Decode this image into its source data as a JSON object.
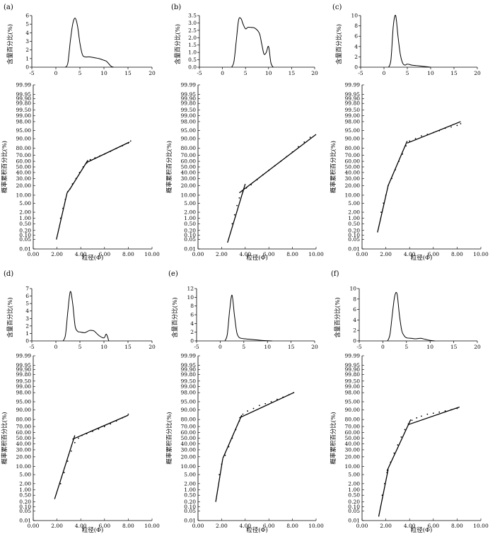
{
  "figure": {
    "cumulative_tick_labels": [
      "99.99",
      "99.95",
      "99.90",
      "99.80",
      "99.50",
      "99.00",
      "98.00",
      "95.00",
      "90.00",
      "80.00",
      "70.00",
      "60.00",
      "50.00",
      "40.00",
      "30.00",
      "20.00",
      "10.00",
      "5.00",
      "2.00",
      "1.00",
      "0.50",
      "0.20",
      "0.10",
      "0.05",
      "0.01"
    ],
    "cumulative_tick_values": [
      99.99,
      99.95,
      99.9,
      99.8,
      99.5,
      99.0,
      98.0,
      95.0,
      90.0,
      80.0,
      70.0,
      60.0,
      50.0,
      40.0,
      30.0,
      20.0,
      10.0,
      5.0,
      2.0,
      1.0,
      0.5,
      0.2,
      0.1,
      0.05,
      0.01
    ]
  },
  "chart_data": [
    {
      "panel": "(a)",
      "frequency": {
        "type": "line",
        "ylabel": "含量百分比(%)",
        "xlim": [
          -5,
          20
        ],
        "xticks": [
          -5,
          0,
          5,
          10,
          15,
          20
        ],
        "ylim": [
          0,
          6
        ],
        "yticks": [
          0,
          1,
          2,
          3,
          4,
          5,
          6
        ],
        "x": [
          2.0,
          2.5,
          3.0,
          3.5,
          4.0,
          4.5,
          5.0,
          5.5,
          6.0,
          7.0,
          8.0,
          9.0,
          10.0,
          10.5,
          11.0,
          11.5,
          12.0
        ],
        "y": [
          0,
          0.5,
          3.0,
          5.0,
          5.7,
          4.8,
          2.8,
          1.5,
          1.2,
          1.2,
          1.1,
          1.0,
          0.8,
          0.7,
          0.4,
          0.1,
          0
        ]
      },
      "cumulative": {
        "type": "line",
        "xlabel": "粒径(Φ)",
        "ylabel": "概率累积百分比(%)",
        "xlim": [
          0,
          10
        ],
        "xticks": [
          "0.00",
          "2.00",
          "4.00",
          "6.00",
          "8.00",
          "10.00"
        ],
        "fit_lines": [
          {
            "x": [
              1.95,
              2.85
            ],
            "y": [
              0.05,
              12
            ]
          },
          {
            "x": [
              2.85,
              3.1
            ],
            "y": [
              12,
              16
            ]
          },
          {
            "x": [
              3.1,
              4.6
            ],
            "y": [
              16,
              62
            ]
          },
          {
            "x": [
              4.5,
              8.1
            ],
            "y": [
              58,
              87
            ]
          }
        ],
        "points": {
          "x": [
            2.3,
            2.5,
            2.7,
            2.9,
            3.1,
            3.3,
            3.6,
            3.9,
            4.2,
            4.5,
            4.8,
            5.2,
            5.6,
            6.0,
            6.5,
            7.0,
            7.5,
            8.0,
            8.2
          ],
          "y": [
            1,
            3,
            7,
            13,
            16,
            22,
            30,
            40,
            50,
            57,
            63,
            66,
            69,
            72,
            76,
            80,
            83,
            86,
            88
          ]
        }
      }
    },
    {
      "panel": "(b)",
      "frequency": {
        "type": "line",
        "ylabel": "含量百分比(%)",
        "xlim": [
          -5,
          20
        ],
        "xticks": [
          -5,
          0,
          5,
          10,
          15,
          20
        ],
        "ylim": [
          0,
          3.5
        ],
        "yticks": [
          "0.0",
          "0.5",
          "1.0",
          "1.5",
          "2.0",
          "2.5",
          "3.0",
          "3.5"
        ],
        "x": [
          2.0,
          2.5,
          3.0,
          3.5,
          4.0,
          4.5,
          5.0,
          5.5,
          6.0,
          7.0,
          8.0,
          8.5,
          9.0,
          9.5,
          10.0,
          10.5,
          11.0
        ],
        "y": [
          0,
          0.4,
          1.8,
          3.2,
          3.3,
          2.9,
          2.6,
          2.7,
          2.7,
          2.65,
          2.3,
          1.6,
          0.9,
          1.0,
          1.4,
          0.3,
          0
        ]
      },
      "cumulative": {
        "type": "line",
        "xlabel": "粒径(Φ)",
        "ylabel": "概率累积百分比(%)",
        "xlim": [
          0,
          10
        ],
        "xticks": [
          "0.00",
          "2.00",
          "4.00",
          "6.00",
          "8.00",
          "10.00"
        ],
        "fit_lines": [
          {
            "x": [
              2.5,
              4.0
            ],
            "y": [
              0.03,
              22
            ]
          },
          {
            "x": [
              3.5,
              10.0
            ],
            "y": [
              12,
              93
            ]
          }
        ],
        "points": {
          "x": [
            2.9,
            3.1,
            3.3,
            3.5,
            3.8,
            4.1,
            4.5,
            5.0,
            5.5,
            6.0,
            6.5,
            7.0,
            7.5,
            8.0,
            8.5,
            9.0,
            9.5
          ],
          "y": [
            0.5,
            1.5,
            4,
            8,
            13,
            17,
            21,
            28,
            36,
            44,
            52,
            60,
            68,
            75,
            82,
            87,
            91
          ]
        }
      }
    },
    {
      "panel": "(c)",
      "frequency": {
        "type": "line",
        "ylabel": "含量百分比(%)",
        "xlim": [
          -5,
          20
        ],
        "xticks": [
          -5,
          0,
          5,
          10,
          15,
          20
        ],
        "ylim": [
          0,
          10
        ],
        "yticks": [
          0,
          2,
          4,
          6,
          8,
          10
        ],
        "x": [
          1.0,
          1.5,
          2.0,
          2.5,
          3.0,
          3.5,
          4.0,
          4.5,
          5.0,
          6.0,
          7.0,
          8.0,
          9.0,
          10.0
        ],
        "y": [
          0,
          1.5,
          8.0,
          10.0,
          6.0,
          2.5,
          0.8,
          0.4,
          0.6,
          0.4,
          0.3,
          0.2,
          0.1,
          0
        ]
      },
      "cumulative": {
        "type": "line",
        "xlabel": "粒径(Φ)",
        "ylabel": "概率累积百分比(%)",
        "xlim": [
          0,
          10
        ],
        "xticks": [
          "0.00",
          "2.00",
          "4.00",
          "6.00",
          "8.00",
          "10.00"
        ],
        "fit_lines": [
          {
            "x": [
              1.3,
              2.2
            ],
            "y": [
              0.15,
              20
            ]
          },
          {
            "x": [
              2.2,
              3.8
            ],
            "y": [
              20,
              88
            ]
          },
          {
            "x": [
              3.8,
              8.3
            ],
            "y": [
              86,
              98
            ]
          }
        ],
        "points": {
          "x": [
            1.6,
            1.8,
            2.0,
            2.2,
            2.5,
            2.8,
            3.1,
            3.4,
            3.7,
            4.0,
            4.5,
            5.0,
            5.5,
            6.0,
            6.5,
            7.0,
            7.5,
            8.0,
            8.3
          ],
          "y": [
            2,
            5,
            10,
            20,
            30,
            45,
            60,
            72,
            83,
            88,
            90,
            92,
            93,
            94,
            95,
            96,
            96.5,
            97,
            97.5
          ]
        }
      }
    },
    {
      "panel": "(d)",
      "frequency": {
        "type": "line",
        "ylabel": "含量百分比(%)",
        "xlim": [
          -5,
          20
        ],
        "xticks": [
          -5,
          0,
          5,
          10,
          15,
          20
        ],
        "ylim": [
          0,
          7
        ],
        "yticks": [
          0,
          1,
          2,
          3,
          4,
          5,
          6,
          7
        ],
        "x": [
          1.5,
          2.0,
          2.5,
          3.0,
          3.5,
          4.0,
          4.5,
          5.0,
          6.0,
          7.0,
          7.5,
          8.0,
          9.0,
          10.0,
          10.5,
          11.0
        ],
        "y": [
          0,
          0.8,
          4.0,
          6.6,
          5.0,
          2.0,
          1.3,
          1.2,
          1.1,
          1.4,
          1.4,
          1.3,
          0.7,
          0.4,
          0.9,
          0
        ]
      },
      "cumulative": {
        "type": "line",
        "xlabel": "粒径(Φ)",
        "ylabel": "概率累积百分比(%)",
        "xlim": [
          0,
          10
        ],
        "xticks": [
          "0.00",
          "2.00",
          "4.00",
          "6.00",
          "8.00",
          "10.00"
        ],
        "fit_lines": [
          {
            "x": [
              1.8,
              3.5
            ],
            "y": [
              0.3,
              55
            ]
          },
          {
            "x": [
              3.3,
              8.0
            ],
            "y": [
              48,
              85
            ]
          }
        ],
        "points": {
          "x": [
            2.3,
            2.6,
            2.9,
            3.2,
            3.5,
            3.8,
            4.1,
            4.5,
            5.0,
            5.5,
            6.0,
            6.5,
            7.0,
            7.5,
            8.0
          ],
          "y": [
            2,
            6,
            15,
            28,
            42,
            50,
            55,
            58,
            62,
            66,
            70,
            74,
            78,
            82,
            86
          ]
        }
      }
    },
    {
      "panel": "(e)",
      "frequency": {
        "type": "line",
        "ylabel": "含量百分比(%)",
        "xlim": [
          -5,
          20
        ],
        "xticks": [
          -5,
          0,
          5,
          10,
          15,
          20
        ],
        "ylim": [
          0,
          12
        ],
        "yticks": [
          0,
          2,
          4,
          6,
          8,
          10,
          12
        ],
        "x": [
          1.0,
          1.5,
          2.0,
          2.5,
          3.0,
          3.5,
          4.0,
          4.5,
          5.0,
          6.0,
          7.0,
          8.0,
          9.0,
          10.0,
          11.0
        ],
        "y": [
          0,
          1.5,
          7.0,
          10.5,
          6.0,
          2.0,
          0.8,
          0.6,
          0.5,
          0.4,
          0.3,
          0.2,
          0.1,
          0.05,
          0
        ]
      },
      "cumulative": {
        "type": "line",
        "xlabel": "粒径(Φ)",
        "ylabel": "概率累积百分比(%)",
        "xlim": [
          0,
          10
        ],
        "xticks": [
          "0.00",
          "2.00",
          "4.00",
          "6.00",
          "8.00",
          "10.00"
        ],
        "fit_lines": [
          {
            "x": [
              1.5,
              2.1
            ],
            "y": [
              0.2,
              18
            ]
          },
          {
            "x": [
              2.1,
              3.7
            ],
            "y": [
              18,
              85
            ]
          },
          {
            "x": [
              3.5,
              8.1
            ],
            "y": [
              82,
              98
            ]
          }
        ],
        "points": {
          "x": [
            1.8,
            2.0,
            2.3,
            2.6,
            2.9,
            3.2,
            3.5,
            3.8,
            4.2,
            4.7,
            5.2,
            5.7,
            6.2,
            6.7,
            7.2,
            7.7,
            8.1
          ],
          "y": [
            5,
            12,
            22,
            35,
            50,
            65,
            78,
            86,
            89,
            91,
            93,
            94,
            95,
            96,
            96.8,
            97.5,
            98
          ]
        }
      }
    },
    {
      "panel": "(f)",
      "frequency": {
        "type": "line",
        "ylabel": "含量百分比(%)",
        "xlim": [
          -5,
          20
        ],
        "xticks": [
          -5,
          0,
          5,
          10,
          15,
          20
        ],
        "ylim": [
          0,
          10
        ],
        "yticks": [
          0,
          2,
          4,
          6,
          8,
          10
        ],
        "x": [
          1.0,
          1.5,
          2.0,
          2.5,
          3.0,
          3.5,
          4.0,
          4.5,
          5.0,
          6.0,
          7.0,
          8.0,
          9.0,
          10.0,
          11.0
        ],
        "y": [
          0,
          1.2,
          5.0,
          8.5,
          9.0,
          5.0,
          2.0,
          1.0,
          0.6,
          0.5,
          0.4,
          0.5,
          0.3,
          0.1,
          0
        ]
      },
      "cumulative": {
        "type": "line",
        "xlabel": "粒径(Φ)",
        "ylabel": "概率累积百分比(%)",
        "xlim": [
          0,
          10
        ],
        "xticks": [
          "0.00",
          "2.00",
          "4.00",
          "6.00",
          "8.00",
          "10.00"
        ],
        "fit_lines": [
          {
            "x": [
              1.4,
              2.2
            ],
            "y": [
              0.02,
              8
            ]
          },
          {
            "x": [
              2.1,
              4.1
            ],
            "y": [
              7,
              80
            ]
          },
          {
            "x": [
              3.9,
              8.2
            ],
            "y": [
              73,
              92
            ]
          }
        ],
        "points": {
          "x": [
            1.7,
            1.9,
            2.1,
            2.4,
            2.7,
            3.0,
            3.3,
            3.6,
            3.9,
            4.2,
            4.6,
            5.0,
            5.5,
            6.0,
            6.5,
            7.0,
            7.5,
            8.0
          ],
          "y": [
            0.5,
            2,
            6,
            14,
            25,
            38,
            52,
            65,
            74,
            79,
            82,
            84,
            86,
            87,
            88,
            89,
            90,
            91
          ]
        }
      }
    }
  ]
}
